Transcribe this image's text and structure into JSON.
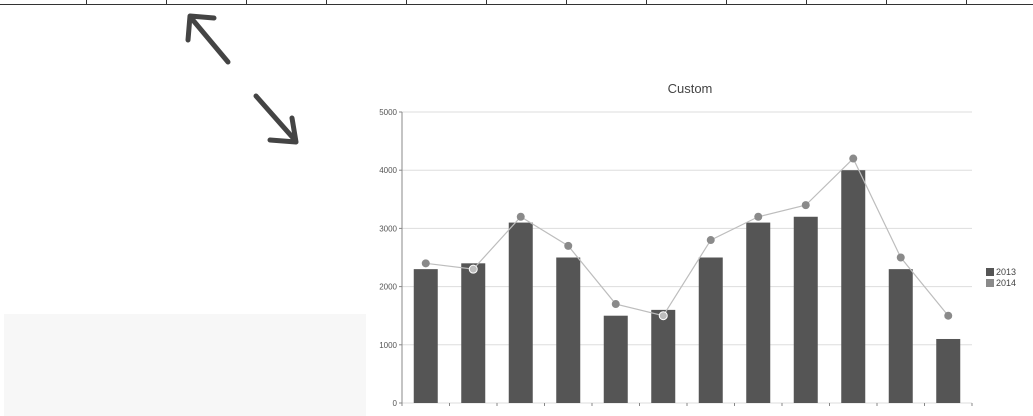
{
  "chart_data": {
    "type": "bar",
    "title": "Custom",
    "xlabel": "",
    "ylabel": "",
    "categories": [
      "",
      "",
      "",
      "",
      "",
      "",
      "",
      "",
      "",
      "",
      "",
      ""
    ],
    "ylim": [
      0,
      5000
    ],
    "yticks": [
      "0",
      "1000",
      "2000",
      "3000",
      "4000",
      "5000"
    ],
    "grid": true,
    "legend_position": "right",
    "series": [
      {
        "name": "2013",
        "type": "bar",
        "color": "#555555",
        "values": [
          2300,
          2400,
          3100,
          2500,
          1500,
          1600,
          2500,
          3100,
          3200,
          4000,
          2300,
          1100
        ]
      },
      {
        "name": "2014",
        "type": "line",
        "color": "#8a8a8a",
        "values": [
          2400,
          2300,
          3200,
          2700,
          1700,
          1500,
          2800,
          3200,
          3400,
          4200,
          2500,
          1500
        ]
      }
    ]
  },
  "colors": {
    "gridline": "#dddddd",
    "axis": "#888888",
    "arrow": "#444444",
    "panel": "#f7f7f7"
  },
  "icons": [
    "resize-arrow-up-left-icon",
    "resize-arrow-down-right-icon"
  ]
}
